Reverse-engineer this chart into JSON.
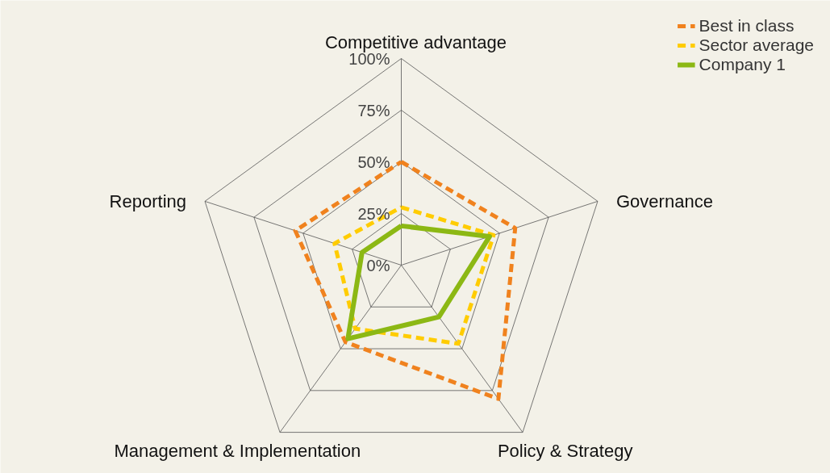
{
  "chart_data": {
    "type": "radar",
    "categories": [
      "Competitive advantage",
      "Governance",
      "Policy & Strategy",
      "Management & Implementation",
      "Reporting"
    ],
    "ylim": [
      0,
      100
    ],
    "yticks": [
      {
        "value": 0,
        "label": "0%"
      },
      {
        "value": 25,
        "label": "25%"
      },
      {
        "value": 50,
        "label": "50%"
      },
      {
        "value": 75,
        "label": "75%"
      },
      {
        "value": 100,
        "label": "100%"
      }
    ],
    "legend": "top right",
    "series": [
      {
        "name": "Best in class",
        "color": "#f0821e",
        "line_style": "dashed",
        "values": [
          50,
          58,
          80,
          46,
          54
        ]
      },
      {
        "name": "Sector average",
        "color": "#ffcc00",
        "line_style": "dashed",
        "values": [
          28,
          47,
          47,
          38,
          34
        ]
      },
      {
        "name": "Company 1",
        "color": "#8cb814",
        "line_style": "solid",
        "values": [
          19,
          45,
          31,
          44,
          20
        ]
      }
    ]
  }
}
